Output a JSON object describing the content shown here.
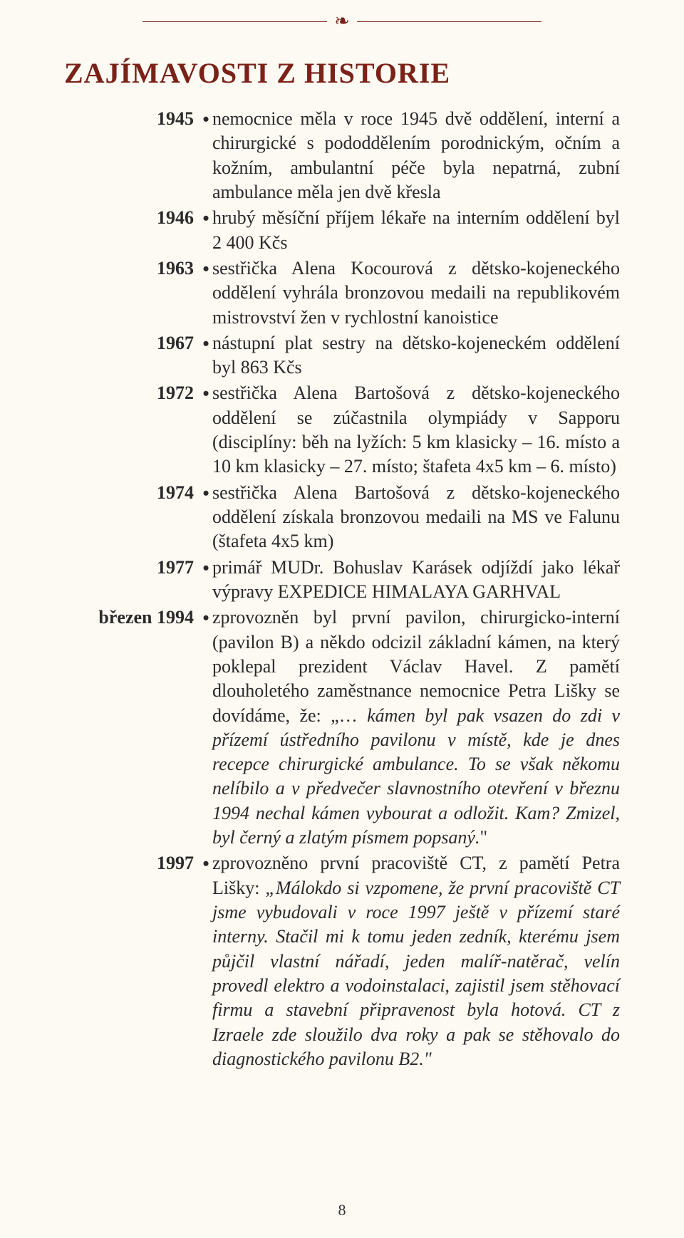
{
  "colors": {
    "background": "#fdfaf3",
    "title": "#7a2218",
    "text": "#2a2a2a",
    "rule": "#7a2218"
  },
  "typography": {
    "title_fontsize": 40,
    "body_fontsize": 26,
    "line_height": 1.32,
    "family": "Georgia, serif"
  },
  "ornament_glyph": "❧",
  "title": "ZAJÍMAVOSTI Z HISTORIE",
  "entries": [
    {
      "year": "1945",
      "text": "nemocnice měla v roce 1945 dvě oddělení, interní a chirurgické s pododdělením porodnickým, očním a kožním, ambulantní péče byla nepatrná, zubní ambulance měla jen dvě křesla"
    },
    {
      "year": "1946",
      "text": "hrubý měsíční příjem lékaře na interním oddělení byl 2 400 Kčs"
    },
    {
      "year": "1963",
      "text": "sestřička Alena Kocourová z dětsko-kojeneckého oddělení vyhrála bronzovou medaili na republikovém mistrovství žen v rychlostní kanoistice"
    },
    {
      "year": "1967",
      "text": "nástupní plat sestry na dětsko-kojeneckém oddělení byl 863 Kčs"
    },
    {
      "year": "1972",
      "text": "sestřička Alena Bartošová z dětsko-kojeneckého oddělení se zúčastnila olympiády v Sapporu (disciplíny: běh na lyžích: 5 km klasicky – 16. místo a 10 km klasicky – 27. místo; štafeta 4x5 km – 6. místo)"
    },
    {
      "year": "1974",
      "text": "sestřička Alena Bartošová z dětsko-kojeneckého oddělení získala bronzovou medaili na MS ve Falunu (štafeta 4x5 km)"
    },
    {
      "year": "1977",
      "text": "primář MUDr. Bohuslav Karásek odjíždí jako lékař výpravy EXPEDICE HIMALAYA GARHVAL"
    },
    {
      "year": "březen 1994",
      "text_pre": "zprovozněn byl první pavilon, chirurgicko-interní (pavilon B) a někdo odcizil základní kámen, na který poklepal prezident Václav Havel. Z pamětí dlouholetého zaměstnance nemocnice Petra Lišky se dovídáme, že: „… ",
      "text_italic": "kámen byl pak vsazen do zdi v přízemí ústředního pavilonu v místě, kde je dnes recepce chirurgické ambulance. To se však někomu nelíbilo a v předvečer slavnostního otevření v březnu 1994 nechal kámen vybourat a odložit. Kam? Zmizel, byl černý a zlatým písmem popsaný.",
      "text_post": "\""
    },
    {
      "year": "1997",
      "text_pre": "zprovozněno první pracoviště CT, z pamětí Petra Lišky: ",
      "text_italic": "„Málokdo si vzpomene, že první pracoviště CT jsme vybudovali v roce 1997 ještě v přízemí staré interny. Stačil mi k tomu jeden zedník, kterému jsem půjčil vlastní nářadí, jeden malíř-natěrač, velín provedl elektro a vodoinstalaci, zajistil jsem stěhovací firmu a stavební připravenost byla hotová. CT z Izraele zde sloužilo dva roky a pak se stěhovalo do diagnostického pavilonu B2.\"",
      "text_post": ""
    }
  ],
  "page_number": "8"
}
